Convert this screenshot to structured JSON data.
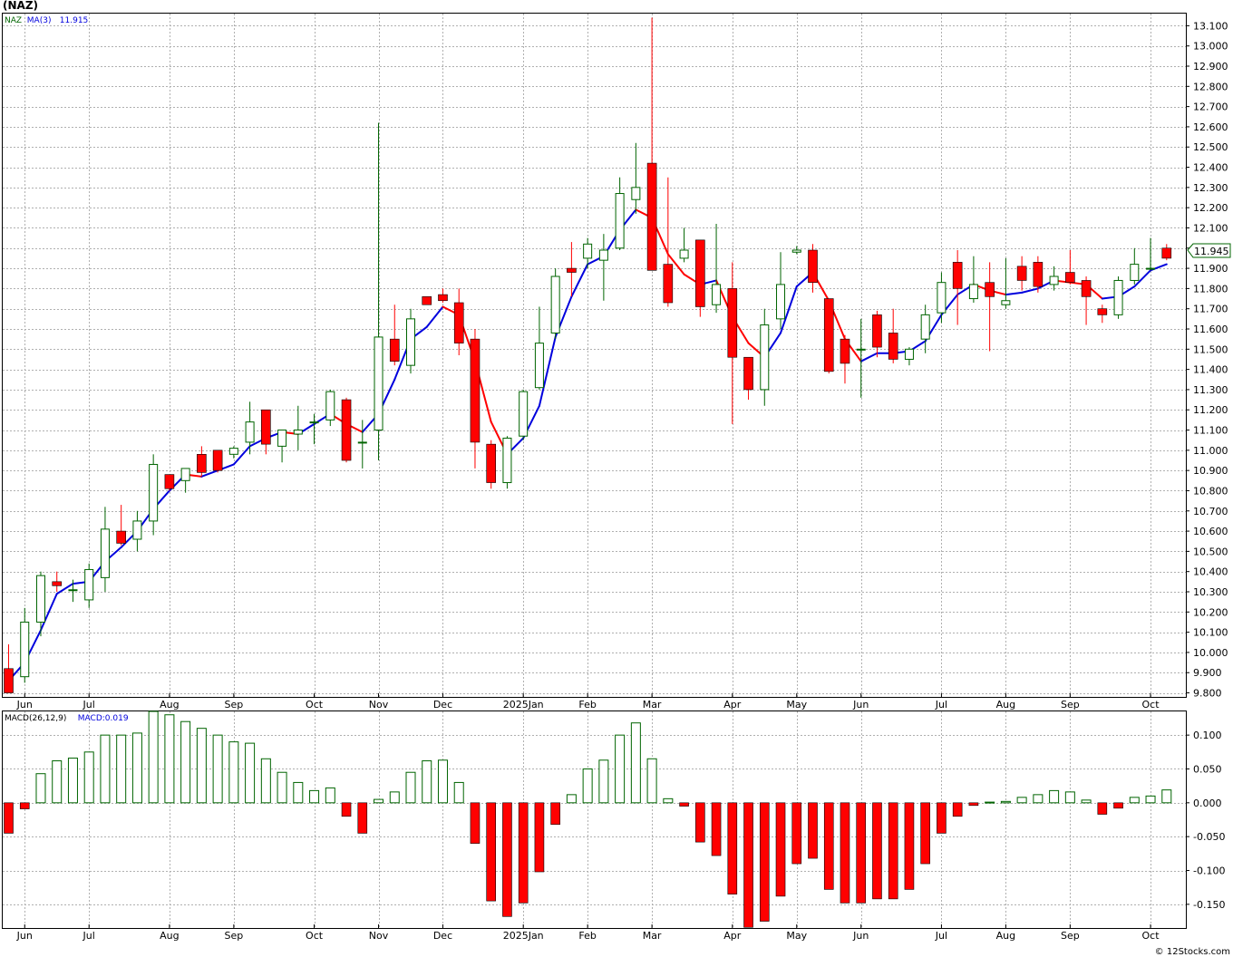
{
  "ticker_title": "(NAZ)",
  "credit": "© 12Stocks.com",
  "last_price_label": "11.945",
  "colors": {
    "up": "#006400",
    "down": "#ff0000",
    "ma_up": "#0000dd",
    "ma_down": "#ff0000",
    "grid": "#b0b0b0"
  },
  "chart_data": [
    {
      "type": "candlestick",
      "legend": [
        {
          "label": "NAZ",
          "color": "#006400"
        },
        {
          "label": "MA(3)",
          "color": "#0000dd"
        },
        {
          "label": "11.915",
          "color": "#0000dd"
        }
      ],
      "ylim": [
        9.78,
        13.16
      ],
      "y_ticks": [
        "9.800",
        "9.900",
        "10.000",
        "10.100",
        "10.200",
        "10.300",
        "10.400",
        "10.500",
        "10.600",
        "10.700",
        "10.800",
        "10.900",
        "11.000",
        "11.100",
        "11.200",
        "11.300",
        "11.400",
        "11.500",
        "11.600",
        "11.700",
        "11.800",
        "11.900",
        "12.000",
        "12.100",
        "12.200",
        "12.300",
        "12.400",
        "12.500",
        "12.600",
        "12.700",
        "12.800",
        "12.900",
        "13.000",
        "13.100"
      ],
      "x_labels": [
        {
          "label": "Jun",
          "index": 1
        },
        {
          "label": "Jul",
          "index": 5
        },
        {
          "label": "Aug",
          "index": 10
        },
        {
          "label": "Sep",
          "index": 14
        },
        {
          "label": "Oct",
          "index": 19
        },
        {
          "label": "Nov",
          "index": 23
        },
        {
          "label": "Dec",
          "index": 27
        },
        {
          "label": "2025Jan",
          "index": 32
        },
        {
          "label": "Feb",
          "index": 36
        },
        {
          "label": "Mar",
          "index": 40
        },
        {
          "label": "Apr",
          "index": 45
        },
        {
          "label": "May",
          "index": 49
        },
        {
          "label": "Jun",
          "index": 53
        },
        {
          "label": "Jul",
          "index": 58
        },
        {
          "label": "Aug",
          "index": 62
        },
        {
          "label": "Sep",
          "index": 66
        },
        {
          "label": "Oct",
          "index": 71
        }
      ],
      "candles": [
        {
          "o": 9.92,
          "h": 10.04,
          "l": 9.8,
          "c": 9.8
        },
        {
          "o": 9.88,
          "h": 10.22,
          "l": 9.85,
          "c": 10.15
        },
        {
          "o": 10.15,
          "h": 10.4,
          "l": 10.08,
          "c": 10.38
        },
        {
          "o": 10.35,
          "h": 10.4,
          "l": 10.3,
          "c": 10.33
        },
        {
          "o": 10.31,
          "h": 10.36,
          "l": 10.25,
          "c": 10.31
        },
        {
          "o": 10.26,
          "h": 10.44,
          "l": 10.22,
          "c": 10.41
        },
        {
          "o": 10.37,
          "h": 10.72,
          "l": 10.3,
          "c": 10.61
        },
        {
          "o": 10.6,
          "h": 10.73,
          "l": 10.53,
          "c": 10.54
        },
        {
          "o": 10.56,
          "h": 10.7,
          "l": 10.5,
          "c": 10.65
        },
        {
          "o": 10.65,
          "h": 10.98,
          "l": 10.58,
          "c": 10.93
        },
        {
          "o": 10.88,
          "h": 10.88,
          "l": 10.8,
          "c": 10.81
        },
        {
          "o": 10.85,
          "h": 10.91,
          "l": 10.79,
          "c": 10.91
        },
        {
          "o": 10.98,
          "h": 11.02,
          "l": 10.87,
          "c": 10.89
        },
        {
          "o": 11.0,
          "h": 11.0,
          "l": 10.89,
          "c": 10.9
        },
        {
          "o": 10.98,
          "h": 11.02,
          "l": 10.96,
          "c": 11.01
        },
        {
          "o": 11.04,
          "h": 11.24,
          "l": 10.98,
          "c": 11.14
        },
        {
          "o": 11.2,
          "h": 11.2,
          "l": 10.98,
          "c": 11.03
        },
        {
          "o": 11.02,
          "h": 11.08,
          "l": 10.94,
          "c": 11.1
        },
        {
          "o": 11.08,
          "h": 11.22,
          "l": 11.0,
          "c": 11.1
        },
        {
          "o": 11.14,
          "h": 11.18,
          "l": 11.03,
          "c": 11.14
        },
        {
          "o": 11.15,
          "h": 11.3,
          "l": 11.12,
          "c": 11.29
        },
        {
          "o": 11.25,
          "h": 11.26,
          "l": 10.94,
          "c": 10.95
        },
        {
          "o": 11.04,
          "h": 11.15,
          "l": 10.91,
          "c": 11.04
        },
        {
          "o": 11.1,
          "h": 12.62,
          "l": 10.95,
          "c": 11.56
        },
        {
          "o": 11.55,
          "h": 11.72,
          "l": 11.42,
          "c": 11.44
        },
        {
          "o": 11.42,
          "h": 11.7,
          "l": 11.38,
          "c": 11.65
        },
        {
          "o": 11.76,
          "h": 11.76,
          "l": 11.72,
          "c": 11.72
        },
        {
          "o": 11.77,
          "h": 11.8,
          "l": 11.73,
          "c": 11.74
        },
        {
          "o": 11.73,
          "h": 11.8,
          "l": 11.47,
          "c": 11.53
        },
        {
          "o": 11.55,
          "h": 11.6,
          "l": 10.91,
          "c": 11.04
        },
        {
          "o": 11.03,
          "h": 11.05,
          "l": 10.81,
          "c": 10.84
        },
        {
          "o": 10.84,
          "h": 11.07,
          "l": 10.81,
          "c": 11.06
        },
        {
          "o": 11.07,
          "h": 11.3,
          "l": 11.05,
          "c": 11.29
        },
        {
          "o": 11.31,
          "h": 11.71,
          "l": 11.3,
          "c": 11.53
        },
        {
          "o": 11.58,
          "h": 11.9,
          "l": 11.55,
          "c": 11.86
        },
        {
          "o": 11.9,
          "h": 12.03,
          "l": 11.76,
          "c": 11.88
        },
        {
          "o": 11.95,
          "h": 12.05,
          "l": 11.9,
          "c": 12.02
        },
        {
          "o": 11.94,
          "h": 12.07,
          "l": 11.74,
          "c": 11.99
        },
        {
          "o": 12.0,
          "h": 12.35,
          "l": 11.99,
          "c": 12.27
        },
        {
          "o": 12.24,
          "h": 12.52,
          "l": 12.17,
          "c": 12.3
        },
        {
          "o": 12.42,
          "h": 13.14,
          "l": 11.89,
          "c": 11.89
        },
        {
          "o": 11.92,
          "h": 12.35,
          "l": 11.71,
          "c": 11.73
        },
        {
          "o": 11.95,
          "h": 12.1,
          "l": 11.93,
          "c": 11.99
        },
        {
          "o": 12.04,
          "h": 12.04,
          "l": 11.66,
          "c": 11.71
        },
        {
          "o": 11.72,
          "h": 12.12,
          "l": 11.68,
          "c": 11.82
        },
        {
          "o": 11.8,
          "h": 11.93,
          "l": 11.13,
          "c": 11.46
        },
        {
          "o": 11.46,
          "h": 11.46,
          "l": 11.25,
          "c": 11.3
        },
        {
          "o": 11.3,
          "h": 11.7,
          "l": 11.22,
          "c": 11.62
        },
        {
          "o": 11.65,
          "h": 11.98,
          "l": 11.6,
          "c": 11.82
        },
        {
          "o": 11.98,
          "h": 12.01,
          "l": 11.97,
          "c": 11.99
        },
        {
          "o": 11.99,
          "h": 12.02,
          "l": 11.78,
          "c": 11.83
        },
        {
          "o": 11.75,
          "h": 11.75,
          "l": 11.38,
          "c": 11.39
        },
        {
          "o": 11.55,
          "h": 11.57,
          "l": 11.33,
          "c": 11.43
        },
        {
          "o": 11.5,
          "h": 11.65,
          "l": 11.26,
          "c": 11.5
        },
        {
          "o": 11.67,
          "h": 11.69,
          "l": 11.46,
          "c": 11.51
        },
        {
          "o": 11.58,
          "h": 11.7,
          "l": 11.43,
          "c": 11.45
        },
        {
          "o": 11.45,
          "h": 11.51,
          "l": 11.42,
          "c": 11.5
        },
        {
          "o": 11.55,
          "h": 11.72,
          "l": 11.48,
          "c": 11.67
        },
        {
          "o": 11.68,
          "h": 11.88,
          "l": 11.63,
          "c": 11.83
        },
        {
          "o": 11.93,
          "h": 11.99,
          "l": 11.62,
          "c": 11.8
        },
        {
          "o": 11.75,
          "h": 11.96,
          "l": 11.73,
          "c": 11.82
        },
        {
          "o": 11.83,
          "h": 11.93,
          "l": 11.49,
          "c": 11.76
        },
        {
          "o": 11.72,
          "h": 11.95,
          "l": 11.7,
          "c": 11.74
        },
        {
          "o": 11.91,
          "h": 11.96,
          "l": 11.79,
          "c": 11.84
        },
        {
          "o": 11.93,
          "h": 11.96,
          "l": 11.78,
          "c": 11.81
        },
        {
          "o": 11.82,
          "h": 11.91,
          "l": 11.79,
          "c": 11.86
        },
        {
          "o": 11.88,
          "h": 11.99,
          "l": 11.82,
          "c": 11.83
        },
        {
          "o": 11.84,
          "h": 11.86,
          "l": 11.62,
          "c": 11.76
        },
        {
          "o": 11.7,
          "h": 11.72,
          "l": 11.63,
          "c": 11.67
        },
        {
          "o": 11.67,
          "h": 11.86,
          "l": 11.65,
          "c": 11.84
        },
        {
          "o": 11.84,
          "h": 12.0,
          "l": 11.82,
          "c": 11.92
        },
        {
          "o": 11.9,
          "h": 12.05,
          "l": 11.89,
          "c": 11.9
        },
        {
          "o": 12.0,
          "h": 12.02,
          "l": 11.94,
          "c": 11.95
        }
      ],
      "ma3": [
        9.86,
        9.95,
        10.11,
        10.29,
        10.34,
        10.35,
        10.45,
        10.52,
        10.6,
        10.71,
        10.8,
        10.88,
        10.87,
        10.9,
        10.93,
        11.02,
        11.06,
        11.09,
        11.08,
        11.13,
        11.18,
        11.13,
        11.09,
        11.18,
        11.35,
        11.55,
        11.61,
        11.71,
        11.67,
        11.44,
        11.14,
        10.98,
        11.06,
        11.22,
        11.56,
        11.76,
        11.92,
        11.96,
        12.09,
        12.19,
        12.15,
        11.97,
        11.87,
        11.82,
        11.84,
        11.66,
        11.53,
        11.46,
        11.58,
        11.81,
        11.88,
        11.74,
        11.55,
        11.44,
        11.48,
        11.48,
        11.49,
        11.54,
        11.67,
        11.77,
        11.82,
        11.79,
        11.77,
        11.78,
        11.8,
        11.84,
        11.83,
        11.82,
        11.75,
        11.76,
        11.81,
        11.89,
        11.92
      ],
      "ma3_last": 11.915
    },
    {
      "type": "bar",
      "name": "MACD(26,12,9)",
      "legend": [
        {
          "label": "MACD(26,12,9)",
          "color": "#000000"
        },
        {
          "label": "MACD:0.019",
          "color": "#0000dd"
        }
      ],
      "ylim": [
        -0.185,
        0.135
      ],
      "y_ticks": [
        "-0.150",
        "-0.100",
        "-0.050",
        "0.000",
        "0.050",
        "0.100"
      ],
      "values": [
        -0.045,
        -0.009,
        0.043,
        0.062,
        0.066,
        0.075,
        0.1,
        0.1,
        0.103,
        0.135,
        0.13,
        0.12,
        0.11,
        0.1,
        0.09,
        0.088,
        0.065,
        0.045,
        0.03,
        0.018,
        0.022,
        -0.02,
        -0.045,
        0.005,
        0.016,
        0.045,
        0.062,
        0.063,
        0.03,
        -0.06,
        -0.145,
        -0.168,
        -0.148,
        -0.102,
        -0.032,
        0.012,
        0.05,
        0.063,
        0.1,
        0.118,
        0.065,
        0.006,
        -0.005,
        -0.058,
        -0.078,
        -0.135,
        -0.184,
        -0.175,
        -0.138,
        -0.09,
        -0.082,
        -0.128,
        -0.148,
        -0.148,
        -0.142,
        -0.142,
        -0.128,
        -0.09,
        -0.045,
        -0.02,
        -0.004,
        0.001,
        0.002,
        0.008,
        0.012,
        0.018,
        0.016,
        0.004,
        -0.017,
        -0.008,
        0.008,
        0.01,
        0.019
      ]
    }
  ]
}
